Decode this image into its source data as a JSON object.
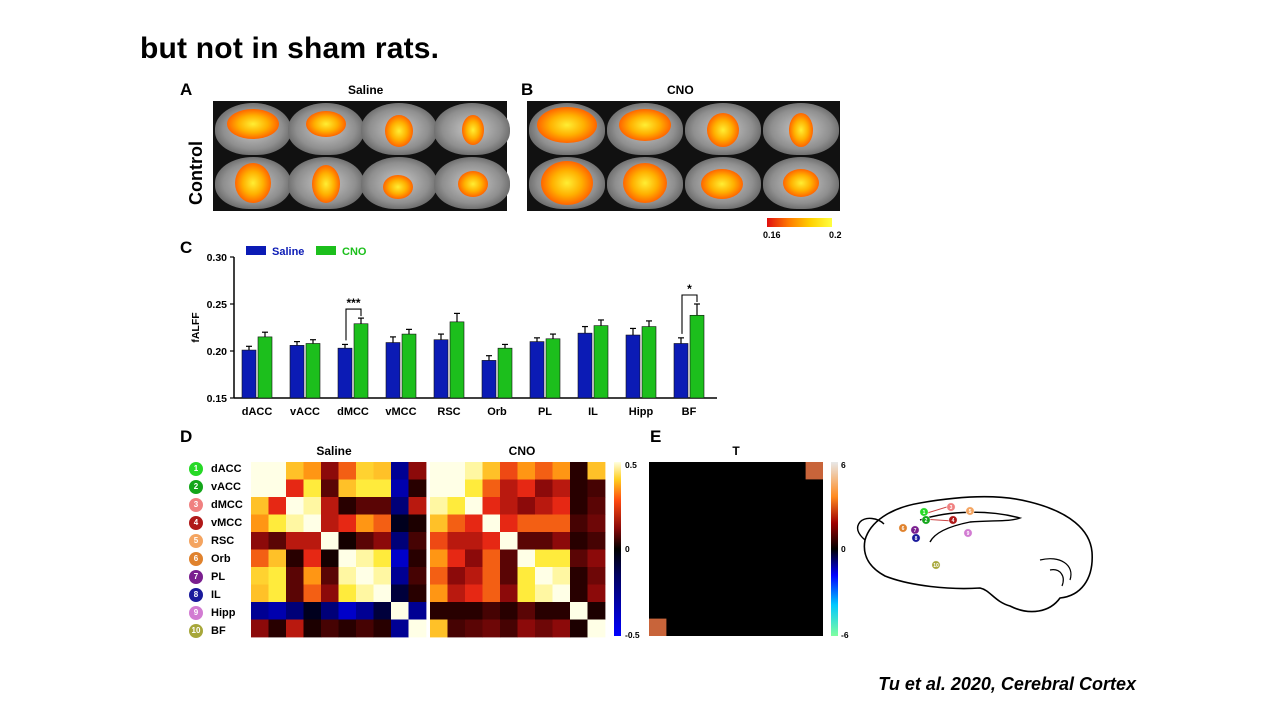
{
  "title": "but not in sham rats.",
  "citation": "Tu et al. 2020, Cerebral  Cortex",
  "panels": {
    "a": {
      "letter": "A",
      "title": "Saline"
    },
    "b": {
      "letter": "B",
      "title": "CNO"
    },
    "c": {
      "letter": "C"
    },
    "d": {
      "letter": "D"
    },
    "e": {
      "letter": "E"
    }
  },
  "row_label": "Control",
  "colorbar_ab": {
    "min": "0.16",
    "max": "0.2"
  },
  "colors": {
    "saline": "#0b1bb5",
    "cno": "#1cbf1c"
  },
  "chart_data": [
    {
      "type": "bar",
      "panel": "C",
      "ylabel": "fALFF",
      "ylim": [
        0.15,
        0.3
      ],
      "yticks": [
        "0.15",
        "0.20",
        "0.25",
        "0.30"
      ],
      "categories": [
        "dACC",
        "vACC",
        "dMCC",
        "vMCC",
        "RSC",
        "Orb",
        "PL",
        "IL",
        "Hipp",
        "BF"
      ],
      "series": [
        {
          "name": "Saline",
          "values": [
            0.201,
            0.206,
            0.203,
            0.209,
            0.212,
            0.19,
            0.21,
            0.219,
            0.217,
            0.208
          ],
          "errors": [
            0.004,
            0.004,
            0.004,
            0.006,
            0.006,
            0.005,
            0.004,
            0.007,
            0.007,
            0.006
          ]
        },
        {
          "name": "CNO",
          "values": [
            0.215,
            0.208,
            0.229,
            0.218,
            0.231,
            0.203,
            0.213,
            0.227,
            0.226,
            0.238
          ],
          "errors": [
            0.005,
            0.004,
            0.006,
            0.005,
            0.009,
            0.004,
            0.005,
            0.006,
            0.006,
            0.012
          ]
        }
      ],
      "significance": [
        {
          "category": "dMCC",
          "label": "***"
        },
        {
          "category": "BF",
          "label": "*"
        }
      ]
    },
    {
      "type": "heatmap",
      "panel": "D",
      "title": "Saline",
      "range": [
        -0.5,
        0.5
      ],
      "rows": [
        "dACC",
        "vACC",
        "dMCC",
        "vMCC",
        "RSC",
        "Orb",
        "PL",
        "IL",
        "Hipp",
        "BF"
      ],
      "values": [
        [
          0.5,
          0.5,
          0.4,
          0.35,
          0.15,
          0.3,
          0.42,
          0.4,
          -0.3,
          0.15
        ],
        [
          0.5,
          0.5,
          0.25,
          0.45,
          0.1,
          0.4,
          0.45,
          0.45,
          -0.35,
          0.05
        ],
        [
          0.4,
          0.25,
          0.5,
          0.48,
          0.2,
          0.05,
          0.1,
          0.1,
          -0.25,
          0.2
        ],
        [
          0.35,
          0.45,
          0.48,
          0.5,
          0.2,
          0.25,
          0.35,
          0.3,
          -0.1,
          0.02
        ],
        [
          0.15,
          0.1,
          0.2,
          0.2,
          0.5,
          0.0,
          0.1,
          0.15,
          -0.25,
          0.08
        ],
        [
          0.3,
          0.4,
          0.05,
          0.25,
          0.0,
          0.5,
          0.48,
          0.45,
          -0.4,
          0.05
        ],
        [
          0.42,
          0.45,
          0.1,
          0.35,
          0.1,
          0.48,
          0.5,
          0.48,
          -0.3,
          0.08
        ],
        [
          0.4,
          0.45,
          0.1,
          0.3,
          0.15,
          0.45,
          0.48,
          0.5,
          -0.15,
          0.05
        ],
        [
          -0.3,
          -0.35,
          -0.25,
          -0.1,
          -0.25,
          -0.4,
          -0.3,
          -0.15,
          0.5,
          -0.3
        ],
        [
          0.15,
          0.05,
          0.2,
          0.02,
          0.08,
          0.05,
          0.08,
          0.05,
          -0.3,
          0.5
        ]
      ]
    },
    {
      "type": "heatmap",
      "panel": "D",
      "title": "CNO",
      "range": [
        -0.5,
        0.5
      ],
      "rows": [
        "dACC",
        "vACC",
        "dMCC",
        "vMCC",
        "RSC",
        "Orb",
        "PL",
        "IL",
        "Hipp",
        "BF"
      ],
      "values": [
        [
          0.5,
          0.5,
          0.48,
          0.4,
          0.28,
          0.35,
          0.3,
          0.35,
          0.05,
          0.4
        ],
        [
          0.5,
          0.5,
          0.45,
          0.3,
          0.2,
          0.25,
          0.15,
          0.2,
          0.05,
          0.08
        ],
        [
          0.48,
          0.45,
          0.5,
          0.25,
          0.2,
          0.15,
          0.2,
          0.25,
          0.05,
          0.1
        ],
        [
          0.4,
          0.3,
          0.25,
          0.5,
          0.25,
          0.3,
          0.3,
          0.3,
          0.08,
          0.12
        ],
        [
          0.28,
          0.2,
          0.2,
          0.25,
          0.5,
          0.1,
          0.1,
          0.15,
          0.05,
          0.08
        ],
        [
          0.35,
          0.25,
          0.15,
          0.3,
          0.1,
          0.5,
          0.45,
          0.45,
          0.1,
          0.15
        ],
        [
          0.3,
          0.15,
          0.2,
          0.3,
          0.1,
          0.45,
          0.5,
          0.48,
          0.05,
          0.12
        ],
        [
          0.35,
          0.2,
          0.25,
          0.3,
          0.15,
          0.45,
          0.48,
          0.5,
          0.05,
          0.15
        ],
        [
          0.05,
          0.05,
          0.05,
          0.08,
          0.05,
          0.1,
          0.05,
          0.05,
          0.5,
          0.02
        ],
        [
          0.4,
          0.08,
          0.1,
          0.12,
          0.08,
          0.15,
          0.12,
          0.15,
          0.02,
          0.5
        ]
      ]
    },
    {
      "type": "heatmap",
      "panel": "E",
      "title": "T",
      "range": [
        -6,
        6
      ],
      "rows": [
        "dACC",
        "vACC",
        "dMCC",
        "vMCC",
        "RSC",
        "Orb",
        "PL",
        "IL",
        "Hipp",
        "BF"
      ],
      "highlights": [
        {
          "row": "dACC",
          "col": "BF",
          "value": 2.5
        },
        {
          "row": "BF",
          "col": "dACC",
          "value": 2.5
        }
      ]
    }
  ],
  "colorbar_d": {
    "max": "0.5",
    "mid": "0",
    "min": "-0.5"
  },
  "colorbar_e": {
    "max": "6",
    "mid": "0",
    "min": "-6"
  },
  "legend_regions": [
    {
      "num": "1",
      "name": "dACC",
      "color": "#26d926"
    },
    {
      "num": "2",
      "name": "vACC",
      "color": "#13a61a"
    },
    {
      "num": "3",
      "name": "dMCC",
      "color": "#f08080"
    },
    {
      "num": "4",
      "name": "vMCC",
      "color": "#b01818"
    },
    {
      "num": "5",
      "name": "RSC",
      "color": "#f4a460"
    },
    {
      "num": "6",
      "name": "Orb",
      "color": "#e0822d"
    },
    {
      "num": "7",
      "name": "PL",
      "color": "#7a1f8f"
    },
    {
      "num": "8",
      "name": "IL",
      "color": "#1a1a9c"
    },
    {
      "num": "9",
      "name": "Hipp",
      "color": "#d27bd2"
    },
    {
      "num": "10",
      "name": "BF",
      "color": "#a7a73a"
    }
  ]
}
